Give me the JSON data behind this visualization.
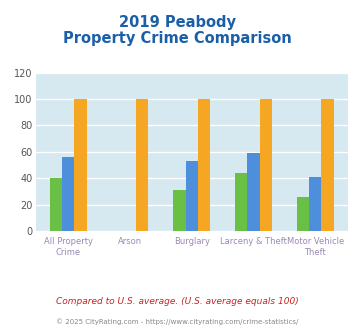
{
  "title_line1": "2019 Peabody",
  "title_line2": "Property Crime Comparison",
  "categories": [
    "All Property Crime",
    "Arson",
    "Burglary",
    "Larceny & Theft",
    "Motor Vehicle Theft"
  ],
  "cat_labels": [
    "All Property Crime",
    "Arson",
    "Burglary",
    "Larceny & Theft",
    "Motor Vehicle Theft"
  ],
  "series": {
    "Peabody": [
      40,
      0,
      31,
      44,
      26
    ],
    "Massachusetts": [
      56,
      0,
      53,
      59,
      41
    ],
    "National": [
      100,
      100,
      100,
      100,
      100
    ]
  },
  "colors": {
    "Peabody": "#6abf45",
    "Massachusetts": "#4d8fdb",
    "National": "#f5a623"
  },
  "ylim": [
    0,
    120
  ],
  "yticks": [
    0,
    20,
    40,
    60,
    80,
    100,
    120
  ],
  "background_color": "#d6e8f0",
  "grid_color": "#ffffff",
  "title_color": "#1a5fa8",
  "xlabel_color": "#9b89b4",
  "footnote1": "Compared to U.S. average. (U.S. average equals 100)",
  "footnote2": "© 2025 CityRating.com - https://www.cityrating.com/crime-statistics/",
  "footnote1_color": "#cc2222",
  "footnote2_color": "#888888",
  "legend_text_color": "#333333"
}
